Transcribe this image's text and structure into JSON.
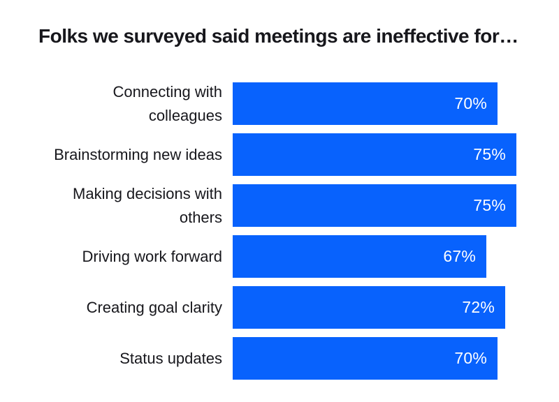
{
  "chart_data": {
    "type": "bar",
    "orientation": "horizontal",
    "title": "Folks we surveyed said meetings are ineffective for…",
    "categories": [
      "Connecting with colleagues",
      "Brainstorming new ideas",
      "Making decisions with others",
      "Driving work forward",
      "Creating goal clarity",
      "Status updates"
    ],
    "label_lines": [
      "Connecting with\ncolleagues",
      "Brainstorming new ideas",
      "Making decisions with\nothers",
      "Driving work forward",
      "Creating goal clarity",
      "Status updates"
    ],
    "values": [
      70,
      75,
      75,
      67,
      72,
      70
    ],
    "value_labels": [
      "70%",
      "75%",
      "75%",
      "67%",
      "72%",
      "70%"
    ],
    "xlabel": "",
    "ylabel": "",
    "xlim": [
      0,
      100
    ],
    "grid": false,
    "legend": false,
    "value_labels_position": "inside-end",
    "bar_color": "#0862fd",
    "value_label_color": "#ffffff",
    "text_color": "#17171c",
    "background_color": "#ffffff"
  }
}
